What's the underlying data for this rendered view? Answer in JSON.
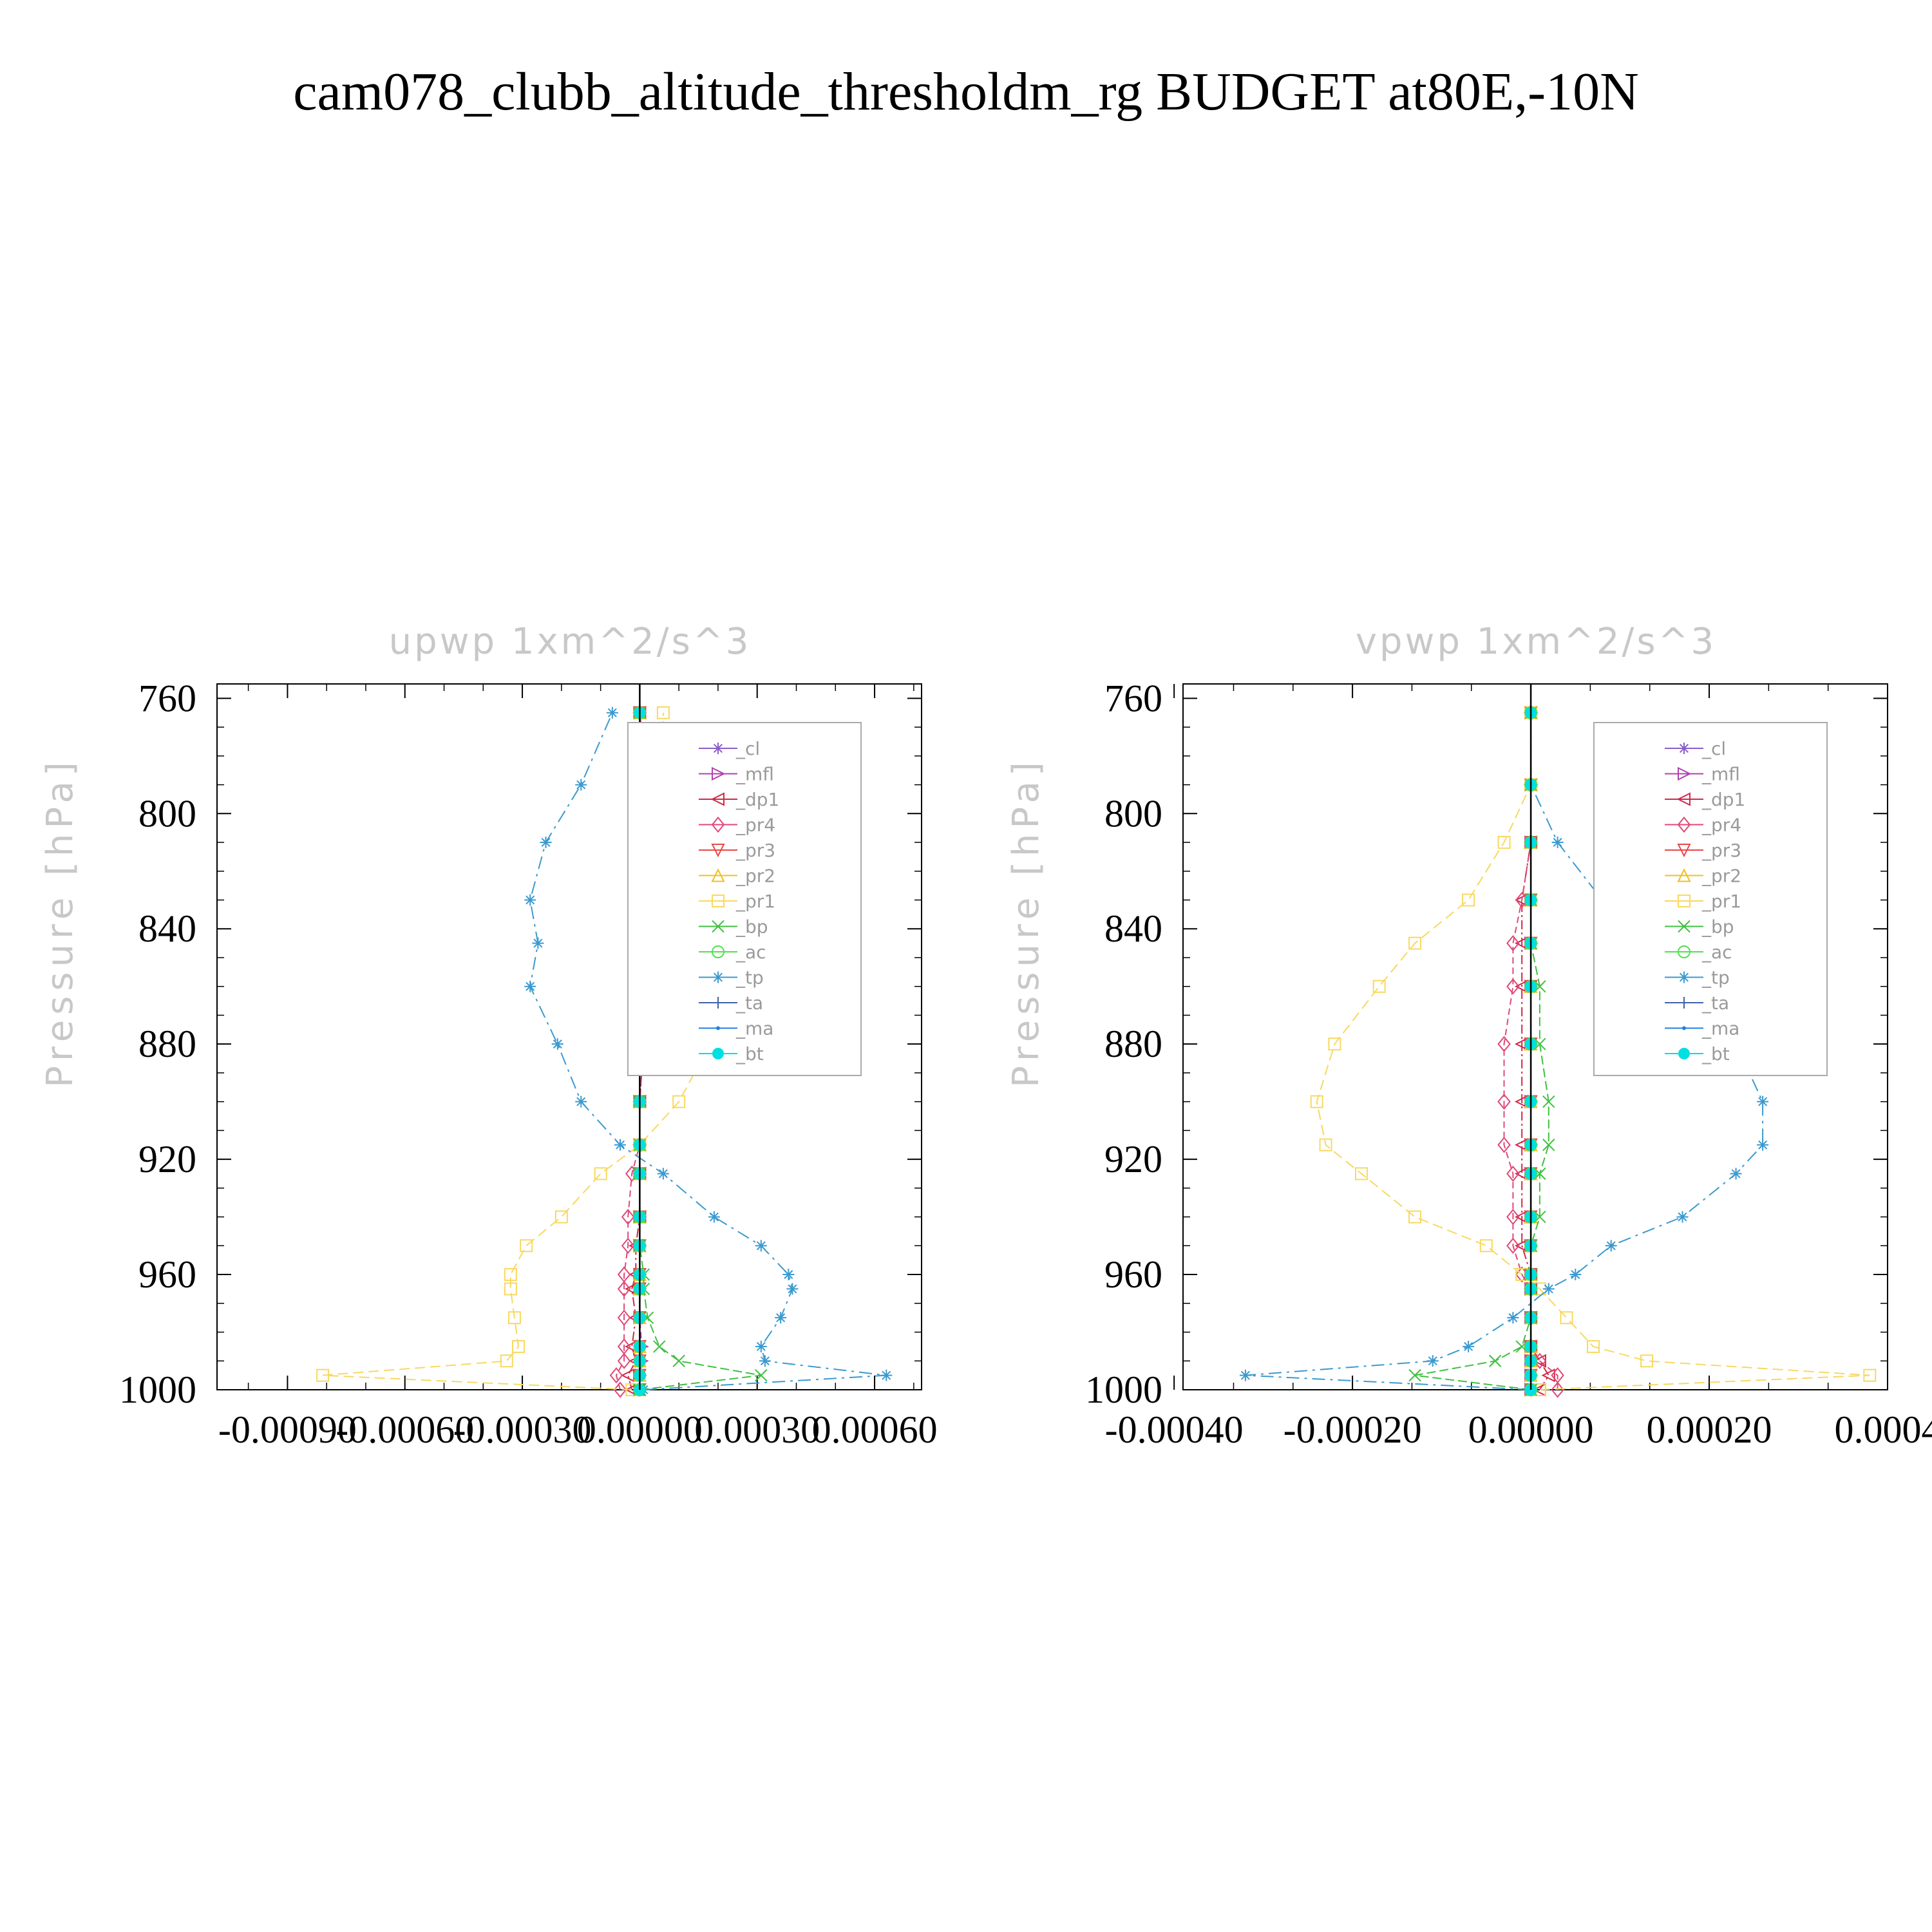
{
  "figure": {
    "title": "cam078_clubb_altitude_thresholdm_rg  BUDGET at80E,-10N"
  },
  "colors": {
    "_cl": "#8a5cc8",
    "_mfl": "#b040b0",
    "_dp1": "#d02848",
    "_pr4": "#e04878",
    "_pr3": "#e84848",
    "_pr2": "#f0c020",
    "_pr1": "#f8d860",
    "_bp": "#40c040",
    "_ac": "#50e050",
    "_tp": "#3a9ad0",
    "_ta": "#4060a8",
    "_ma": "#2080e0",
    "_bt": "#00e0e0"
  },
  "markers": {
    "_cl": "star",
    "_mfl": "triangle-right",
    "_dp1": "triangle-left",
    "_pr4": "diamond",
    "_pr3": "triangle-down",
    "_pr2": "triangle-up",
    "_pr1": "square",
    "_bp": "x",
    "_ac": "circle",
    "_tp": "asterisk",
    "_ta": "plus",
    "_ma": "dot",
    "_bt": "filled-circle"
  },
  "chart_data": [
    {
      "type": "line",
      "title": "upwp    1xm^2/s^3",
      "xlabel": "",
      "ylabel": "Pressure  [hPa]",
      "xlim": [
        -0.00108,
        0.00072
      ],
      "ylim": [
        1000,
        755
      ],
      "y_inverted": true,
      "xticks": [
        -0.0009,
        -0.0006,
        -0.0003,
        0.0,
        0.0003,
        0.0006
      ],
      "xtick_labels": [
        "-0.00090",
        "-0.00060",
        "-0.00030",
        "0.00000",
        "0.00030",
        "0.00060"
      ],
      "yticks": [
        760,
        800,
        840,
        880,
        920,
        960,
        1000
      ],
      "ytick_labels": [
        "760",
        "800",
        "840",
        "880",
        "920",
        "960",
        "1000"
      ],
      "legend_position": "top-right",
      "grid": false,
      "y": [
        1000,
        995,
        990,
        985,
        975,
        965,
        960,
        950,
        940,
        925,
        915,
        900,
        880,
        860,
        845,
        830,
        810,
        790,
        765
      ],
      "series": [
        {
          "name": "_cl",
          "values": [
            0,
            0,
            0,
            0,
            0,
            0,
            0,
            0,
            0,
            0,
            0,
            0,
            0,
            0,
            0,
            0,
            0,
            0,
            0
          ]
        },
        {
          "name": "_mfl",
          "values": [
            0,
            0,
            5e-06,
            5e-06,
            0,
            0,
            0,
            0,
            0,
            0,
            0,
            0,
            0,
            0,
            1e-05,
            0,
            0,
            0,
            0
          ]
        },
        {
          "name": "_dp1",
          "values": [
            -2e-05,
            -3e-05,
            -1e-05,
            -2e-05,
            -1e-05,
            -2e-05,
            -1e-05,
            -1e-05,
            0,
            0,
            0,
            0,
            1e-05,
            2e-05,
            2e-05,
            2e-05,
            2e-05,
            0,
            0
          ]
        },
        {
          "name": "_pr4",
          "values": [
            -5e-05,
            -6e-05,
            -4e-05,
            -4e-05,
            -4e-05,
            -4e-05,
            -4e-05,
            -3e-05,
            -3e-05,
            -2e-05,
            0,
            0,
            1e-05,
            2e-05,
            2e-05,
            3e-05,
            3e-05,
            2e-05,
            0
          ],
          "values_rounded_note": null
        },
        {
          "name": "_pr3",
          "values": [
            0,
            0,
            0,
            0,
            0,
            0,
            0,
            0,
            0,
            0,
            0,
            0,
            0,
            0,
            0,
            0,
            0,
            0,
            0
          ]
        },
        {
          "name": "_pr2",
          "values": [
            0,
            0,
            0,
            0,
            0,
            0,
            0,
            0,
            0,
            0,
            0,
            0,
            0,
            0,
            0,
            0,
            0,
            0,
            0
          ]
        },
        {
          "name": "_pr1",
          "values": [
            -2e-05,
            -0.00081,
            -0.00034,
            -0.00031,
            -0.00032,
            -0.00033,
            -0.00033,
            -0.00029,
            -0.0002,
            -0.0001,
            0,
            0.0001,
            0.00018,
            0.00023,
            0.00025,
            0.00026,
            0.00019,
            6e-05,
            6e-05
          ]
        },
        {
          "name": "_bp",
          "values": [
            0,
            0.00031,
            0.0001,
            5e-05,
            2e-05,
            1e-05,
            1e-05,
            0,
            0,
            0,
            0,
            0,
            0,
            0,
            0,
            0,
            0,
            0,
            0
          ]
        },
        {
          "name": "_ac",
          "values": [
            0,
            0,
            0,
            0,
            0,
            0,
            0,
            0,
            0,
            0,
            0,
            0,
            0,
            0,
            0,
            0,
            0,
            0,
            0
          ]
        },
        {
          "name": "_tp",
          "values": [
            1e-05,
            0.00063,
            0.00032,
            0.00031,
            0.00036,
            0.00039,
            0.00038,
            0.00031,
            0.00019,
            6e-05,
            -5e-05,
            -0.00015,
            -0.00021,
            -0.00028,
            -0.00026,
            -0.00028,
            -0.00024,
            -0.00015,
            -7e-05
          ]
        },
        {
          "name": "_ta",
          "values": [
            0,
            0,
            0,
            0,
            0,
            0,
            0,
            0,
            0,
            0,
            0,
            0,
            0,
            0,
            0,
            0,
            0,
            0,
            0
          ]
        },
        {
          "name": "_ma",
          "values": [
            0,
            0,
            0,
            0,
            0,
            0,
            0,
            0,
            0,
            0,
            0,
            0,
            0,
            0,
            0,
            0,
            0,
            0,
            0
          ]
        },
        {
          "name": "_bt",
          "values": [
            0,
            0,
            0,
            0,
            0,
            0,
            0,
            0,
            0,
            0,
            0,
            0,
            0,
            0,
            0,
            0,
            0,
            0,
            0
          ]
        }
      ]
    },
    {
      "type": "line",
      "title": "vpwp    1xm^2/s^3",
      "xlabel": "",
      "ylabel": "Pressure  [hPa]",
      "xlim": [
        -0.00039,
        0.0004
      ],
      "ylim": [
        1000,
        755
      ],
      "y_inverted": true,
      "xticks": [
        -0.0004,
        -0.0002,
        0.0,
        0.0002,
        0.0004
      ],
      "xtick_labels": [
        "-0.00040",
        "-0.00020",
        "0.00000",
        "0.00020",
        "0.0004"
      ],
      "yticks": [
        760,
        800,
        840,
        880,
        920,
        960,
        1000
      ],
      "ytick_labels": [
        "760",
        "800",
        "840",
        "880",
        "920",
        "960",
        "1000"
      ],
      "legend_position": "top-right",
      "grid": false,
      "y": [
        1000,
        995,
        990,
        985,
        975,
        965,
        960,
        950,
        940,
        925,
        915,
        900,
        880,
        860,
        845,
        830,
        810,
        790,
        765
      ],
      "series": [
        {
          "name": "_cl",
          "values": [
            0,
            0,
            0,
            0,
            0,
            0,
            0,
            0,
            0,
            0,
            0,
            0,
            0,
            0,
            0,
            0,
            0,
            0,
            0
          ]
        },
        {
          "name": "_mfl",
          "values": [
            0,
            0,
            0,
            0,
            0,
            0,
            0,
            0,
            0,
            0,
            0,
            0,
            0,
            0,
            0,
            0,
            0,
            0,
            0
          ]
        },
        {
          "name": "_dp1",
          "values": [
            1e-05,
            2e-05,
            1e-05,
            0,
            0,
            0,
            0,
            -1e-05,
            -1e-05,
            -1e-05,
            -1e-05,
            -1e-05,
            -1e-05,
            -1e-05,
            -1e-05,
            -1e-05,
            0,
            0,
            0
          ]
        },
        {
          "name": "_pr4",
          "values": [
            3e-05,
            3e-05,
            1e-05,
            0,
            0,
            0,
            -1e-05,
            -2e-05,
            -2e-05,
            -2e-05,
            -3e-05,
            -3e-05,
            -3e-05,
            -2e-05,
            -2e-05,
            -1e-05,
            0,
            0,
            0
          ]
        },
        {
          "name": "_pr3",
          "values": [
            0,
            0,
            0,
            0,
            0,
            0,
            0,
            0,
            0,
            0,
            0,
            0,
            0,
            0,
            0,
            0,
            0,
            0,
            0
          ]
        },
        {
          "name": "_pr2",
          "values": [
            0,
            0,
            0,
            0,
            0,
            0,
            0,
            0,
            0,
            0,
            0,
            0,
            0,
            0,
            0,
            0,
            0,
            0,
            0
          ]
        },
        {
          "name": "_pr1",
          "values": [
            1e-05,
            0.00038,
            0.00013,
            7e-05,
            4e-05,
            1e-05,
            -1e-05,
            -5e-05,
            -0.00013,
            -0.00019,
            -0.00023,
            -0.00024,
            -0.00022,
            -0.00017,
            -0.00013,
            -7e-05,
            -3e-05,
            0,
            0
          ]
        },
        {
          "name": "_bp",
          "values": [
            0,
            -0.00013,
            -4e-05,
            -1e-05,
            0,
            0,
            0,
            0,
            1e-05,
            1e-05,
            2e-05,
            2e-05,
            1e-05,
            1e-05,
            0,
            0,
            0,
            0,
            0
          ]
        },
        {
          "name": "_ac",
          "values": [
            0,
            0,
            0,
            0,
            0,
            0,
            0,
            0,
            0,
            0,
            0,
            0,
            0,
            0,
            0,
            0,
            0,
            0,
            0
          ]
        },
        {
          "name": "_tp",
          "values": [
            0,
            -0.00032,
            -0.00011,
            -7e-05,
            -2e-05,
            2e-05,
            5e-05,
            9e-05,
            0.00017,
            0.00023,
            0.00026,
            0.00026,
            0.00023,
            0.00017,
            0.00013,
            8e-05,
            3e-05,
            0,
            0
          ]
        },
        {
          "name": "_ta",
          "values": [
            0,
            0,
            0,
            0,
            0,
            0,
            0,
            0,
            0,
            0,
            0,
            0,
            0,
            0,
            0,
            0,
            0,
            0,
            0
          ]
        },
        {
          "name": "_ma",
          "values": [
            0,
            0,
            0,
            0,
            0,
            0,
            0,
            0,
            0,
            0,
            0,
            0,
            0,
            0,
            0,
            0,
            0,
            0,
            0
          ]
        },
        {
          "name": "_bt",
          "values": [
            0,
            0,
            0,
            0,
            0,
            0,
            0,
            0,
            0,
            0,
            0,
            0,
            0,
            0,
            0,
            0,
            0,
            0,
            0
          ]
        }
      ]
    }
  ]
}
